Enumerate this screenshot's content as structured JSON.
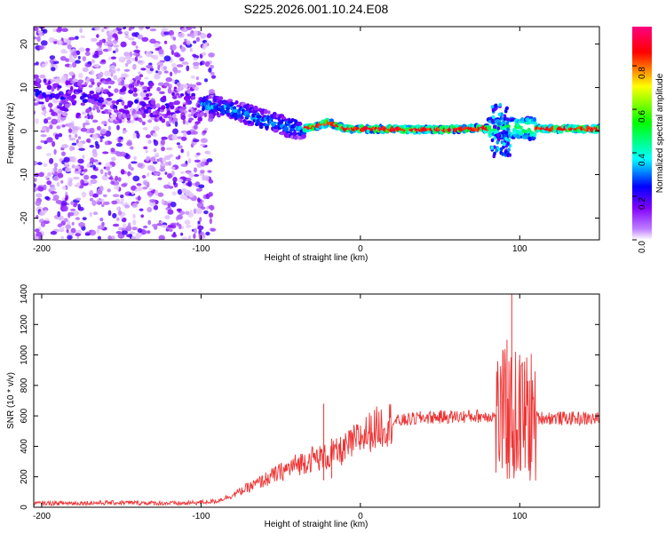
{
  "figure": {
    "title": "S225.2026.001.10.24.E08"
  },
  "chart_data": [
    {
      "type": "heatmap",
      "name": "spectrogram",
      "xlabel": "Height of straight line (km)",
      "ylabel": "Frequency (Hz)",
      "xlim": [
        -205,
        150
      ],
      "ylim": [
        -25,
        24
      ],
      "x_ticks": [
        -200,
        -100,
        0,
        100
      ],
      "y_ticks": [
        -20,
        -10,
        0,
        10,
        20
      ],
      "colorbar": {
        "label": "Normalized spectral amplitude",
        "range": [
          0,
          0.98
        ],
        "ticks": [
          0.0,
          0.2,
          0.4,
          0.6,
          0.8
        ],
        "colors": [
          "#ffffff",
          "#c080ff",
          "#8000ff",
          "#0000ff",
          "#00ffff",
          "#00ff00",
          "#ffff00",
          "#ff0000",
          "#ff0080"
        ]
      },
      "ridge": [
        {
          "x": -205,
          "f": 8.5
        },
        {
          "x": -150,
          "f": 7.0
        },
        {
          "x": -100,
          "f": 6.0
        },
        {
          "x": -80,
          "f": 5.0
        },
        {
          "x": -60,
          "f": 2.5
        },
        {
          "x": -40,
          "f": 0.5
        },
        {
          "x": -30,
          "f": 0.8
        },
        {
          "x": -20,
          "f": 2.0
        },
        {
          "x": -10,
          "f": 0.5
        },
        {
          "x": 0,
          "f": 0.5
        },
        {
          "x": 50,
          "f": 0.3
        },
        {
          "x": 90,
          "f": 0.8
        },
        {
          "x": 120,
          "f": 0.5
        },
        {
          "x": 150,
          "f": 0.5
        }
      ]
    },
    {
      "type": "line",
      "name": "snr",
      "xlabel": "Height of straight line (km)",
      "ylabel": "SNR (10 * v/v)",
      "xlim": [
        -205,
        150
      ],
      "ylim": [
        0,
        1400
      ],
      "x_ticks": [
        -200,
        -100,
        0,
        100
      ],
      "y_ticks": [
        0,
        200,
        400,
        600,
        800,
        1000,
        1200,
        1400
      ],
      "color": "#ee3333",
      "trend": [
        {
          "x": -205,
          "y": 25
        },
        {
          "x": -150,
          "y": 30
        },
        {
          "x": -110,
          "y": 25
        },
        {
          "x": -90,
          "y": 40
        },
        {
          "x": -80,
          "y": 80
        },
        {
          "x": -60,
          "y": 180
        },
        {
          "x": -40,
          "y": 280
        },
        {
          "x": -30,
          "y": 320
        },
        {
          "x": -20,
          "y": 330
        },
        {
          "x": -10,
          "y": 380
        },
        {
          "x": 0,
          "y": 460
        },
        {
          "x": 10,
          "y": 520
        },
        {
          "x": 20,
          "y": 560
        },
        {
          "x": 40,
          "y": 590
        },
        {
          "x": 80,
          "y": 600
        },
        {
          "x": 100,
          "y": 590
        },
        {
          "x": 150,
          "y": 580
        }
      ],
      "spikes": [
        {
          "x": -23,
          "y": 680
        },
        {
          "x": -18,
          "y": 450
        },
        {
          "x": 92,
          "y": 1100
        },
        {
          "x": 95,
          "y": 1400
        },
        {
          "x": 100,
          "y": 1000
        },
        {
          "x": 103,
          "y": 900
        }
      ]
    }
  ]
}
